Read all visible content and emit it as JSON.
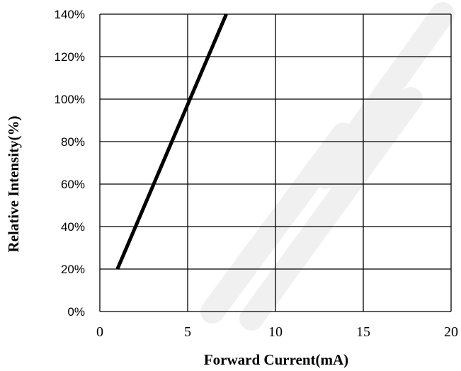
{
  "chart_data": {
    "type": "line",
    "xlabel": "Forward Current(mA)",
    "ylabel": "Relative  Intensity(%)",
    "xlim": [
      0,
      20
    ],
    "ylim": [
      0,
      140
    ],
    "x_ticks": [
      0,
      5,
      10,
      15,
      20
    ],
    "y_ticks": [
      0,
      20,
      40,
      60,
      80,
      100,
      120,
      140
    ],
    "x_tick_labels": [
      "0",
      "5",
      "10",
      "15",
      "20"
    ],
    "y_tick_labels": [
      "0%",
      "20%",
      "40%",
      "60%",
      "80%",
      "100%",
      "120%",
      "140%"
    ],
    "grid": true,
    "series": [
      {
        "x": [
          1,
          7.2
        ],
        "y": [
          20,
          140
        ],
        "color": "#000000"
      }
    ]
  }
}
